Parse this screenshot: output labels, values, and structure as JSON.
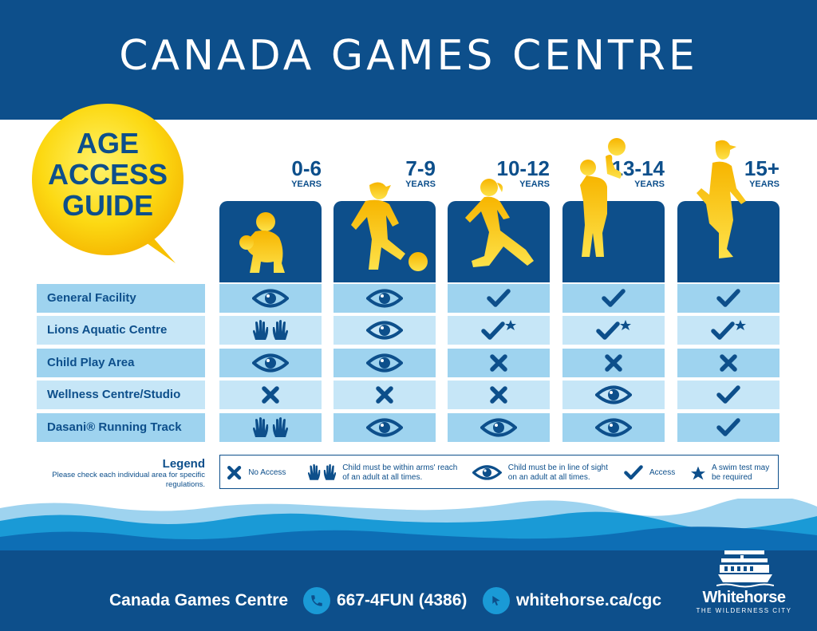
{
  "header": {
    "title": "CANADA GAMES CENTRE"
  },
  "guide_title": {
    "line1": "AGE",
    "line2": "ACCESS",
    "line3": "GUIDE"
  },
  "age_groups": [
    {
      "age": "0-6",
      "unit": "YEARS"
    },
    {
      "age": "7-9",
      "unit": "YEARS"
    },
    {
      "age": "10-12",
      "unit": "YEARS"
    },
    {
      "age": "13-14",
      "unit": "YEARS"
    },
    {
      "age": "15+",
      "unit": "YEARS"
    }
  ],
  "rows": [
    {
      "area": "General Facility",
      "access": [
        "line-of-sight",
        "line-of-sight",
        "access",
        "access",
        "access"
      ]
    },
    {
      "area": "Lions Aquatic Centre",
      "access": [
        "arms-reach",
        "line-of-sight",
        "access-swim-test",
        "access-swim-test",
        "access-swim-test"
      ]
    },
    {
      "area": "Child Play Area",
      "access": [
        "line-of-sight",
        "line-of-sight",
        "no-access",
        "no-access",
        "no-access"
      ]
    },
    {
      "area": "Wellness Centre/Studio",
      "access": [
        "no-access",
        "no-access",
        "no-access",
        "line-of-sight",
        "access"
      ]
    },
    {
      "area": "Dasani® Running Track",
      "access": [
        "arms-reach",
        "line-of-sight",
        "line-of-sight",
        "line-of-sight",
        "access"
      ]
    }
  ],
  "legend": {
    "title": "Legend",
    "note": "Please check each individual area for specific regulations.",
    "items": {
      "no_access": "No Access",
      "arms_reach": "Child must be within arms' reach of an adult at all times.",
      "line_of_sight": "Child must be in line of sight on an adult at all times.",
      "access": "Access",
      "swim_test": "A swim test may be required"
    }
  },
  "footer": {
    "name": "Canada Games Centre",
    "phone": "667-4FUN (4386)",
    "website": "whitehorse.ca/cgc",
    "logo_name": "Whitehorse",
    "logo_tagline": "THE WILDERNESS CITY"
  },
  "colors": {
    "navy": "#0d4f8b",
    "light_blue": "#9ed3ef",
    "pale_blue": "#c6e6f7",
    "bubble_yellow": "#fcd913",
    "accent_blue": "#1a9ad6"
  }
}
